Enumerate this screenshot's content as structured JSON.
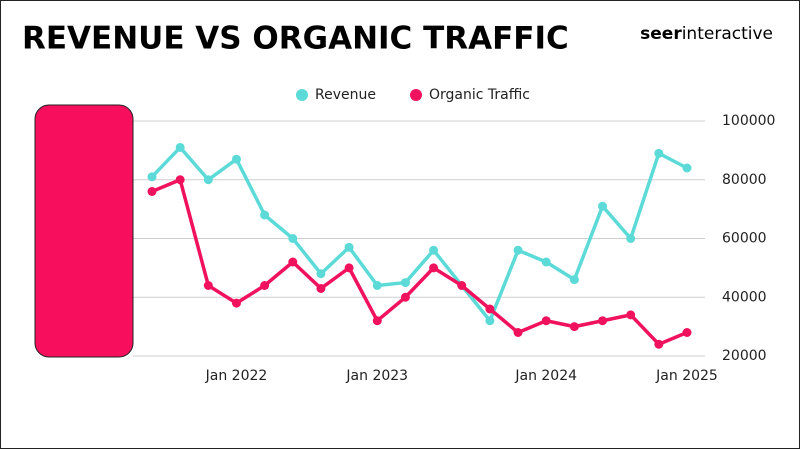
{
  "chart_data": {
    "type": "line",
    "title": "REVENUE VS ORGANIC TRAFFIC",
    "logo": {
      "bold": "seer",
      "regular": "interactive"
    },
    "categories": [
      null,
      null,
      null,
      "Jan 2022",
      null,
      null,
      null,
      null,
      "Jan 2023",
      null,
      null,
      null,
      null,
      null,
      "Jan 2024",
      null,
      null,
      null,
      null,
      "Jan 2025"
    ],
    "series": [
      {
        "name": "Revenue",
        "color": "#5cdad8",
        "values": [
          81000,
          91000,
          80000,
          87000,
          68000,
          60000,
          48000,
          57000,
          44000,
          45000,
          56000,
          44000,
          32000,
          56000,
          52000,
          46000,
          71000,
          60000,
          89000,
          84000
        ]
      },
      {
        "name": "Organic Traffic",
        "color": "#f0125c",
        "values": [
          76000,
          80000,
          44000,
          38000,
          44000,
          52000,
          43000,
          50000,
          32000,
          40000,
          50000,
          44000,
          36000,
          28000,
          32000,
          30000,
          32000,
          34000,
          24000,
          28000
        ]
      }
    ],
    "ylim": [
      20000,
      100000
    ],
    "yticks": [
      20000,
      40000,
      60000,
      80000,
      100000
    ],
    "grid": true
  }
}
